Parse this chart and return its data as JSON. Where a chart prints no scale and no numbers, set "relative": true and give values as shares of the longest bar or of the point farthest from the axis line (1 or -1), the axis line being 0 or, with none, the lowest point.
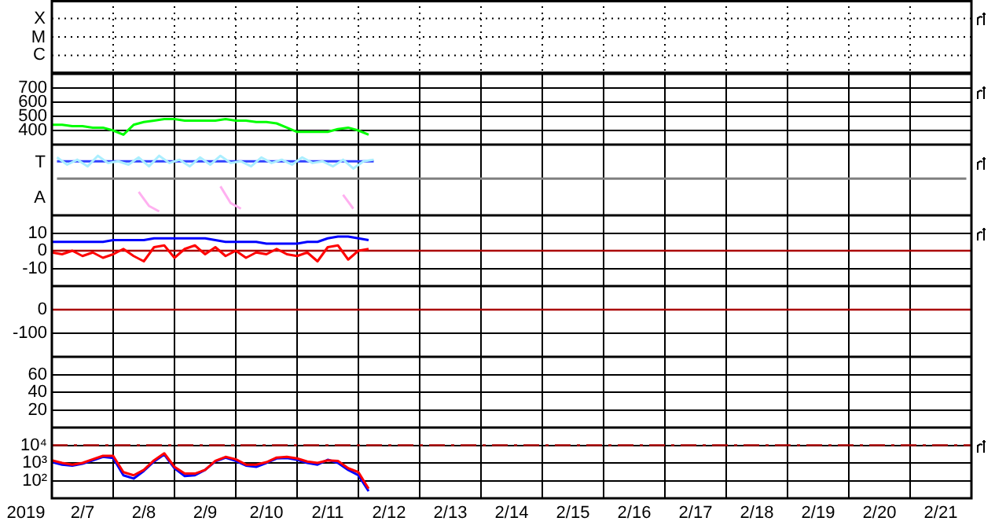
{
  "chart_data": [
    {
      "type": "other",
      "annotations": [
        "X",
        "M",
        "C"
      ]
    },
    {
      "type": "line",
      "tick_labels": "y",
      "grid": true,
      "legend": false,
      "xlim": [
        "2019-02-07T00:00",
        "2019-02-22T00:00"
      ],
      "ylim": [
        300,
        800
      ],
      "yticks": [
        400,
        500,
        600,
        700
      ],
      "x": [
        "2019-02-07T00:00",
        "2019-02-07T04:00",
        "2019-02-07T08:00",
        "2019-02-07T12:00",
        "2019-02-07T16:00",
        "2019-02-07T20:00",
        "2019-02-08T00:00",
        "2019-02-08T04:00",
        "2019-02-08T08:00",
        "2019-02-08T12:00",
        "2019-02-08T16:00",
        "2019-02-08T20:00",
        "2019-02-09T00:00",
        "2019-02-09T04:00",
        "2019-02-09T08:00",
        "2019-02-09T12:00",
        "2019-02-09T16:00",
        "2019-02-09T20:00",
        "2019-02-10T00:00",
        "2019-02-10T04:00",
        "2019-02-10T08:00",
        "2019-02-10T12:00",
        "2019-02-10T16:00",
        "2019-02-10T20:00",
        "2019-02-11T00:00",
        "2019-02-11T04:00",
        "2019-02-11T08:00",
        "2019-02-11T12:00",
        "2019-02-11T16:00",
        "2019-02-11T20:00",
        "2019-02-12T00:00",
        "2019-02-12T04:00"
      ],
      "series": [
        {
          "color": "#00ff00",
          "values": [
            440,
            440,
            430,
            430,
            420,
            420,
            400,
            370,
            440,
            460,
            470,
            480,
            480,
            470,
            470,
            470,
            470,
            480,
            470,
            470,
            460,
            460,
            450,
            420,
            390,
            390,
            390,
            390,
            410,
            420,
            400,
            370
          ]
        }
      ],
      "xticks": [
        {
          "value": "2019-02-07T00:00",
          "label": null
        },
        {
          "value": "2019-02-08T00:00",
          "label": null
        },
        {
          "value": "2019-02-09T00:00",
          "label": null
        },
        {
          "value": "2019-02-10T00:00",
          "label": null
        },
        {
          "value": "2019-02-11T00:00",
          "label": null
        },
        {
          "value": "2019-02-12T00:00",
          "label": null
        },
        {
          "value": "2019-02-13T00:00",
          "label": null
        },
        {
          "value": "2019-02-14T00:00",
          "label": null
        },
        {
          "value": "2019-02-15T00:00",
          "label": null
        },
        {
          "value": "2019-02-16T00:00",
          "label": null
        },
        {
          "value": "2019-02-17T00:00",
          "label": null
        },
        {
          "value": "2019-02-18T00:00",
          "label": null
        },
        {
          "value": "2019-02-19T00:00",
          "label": null
        },
        {
          "value": "2019-02-20T00:00",
          "label": null
        },
        {
          "value": "2019-02-21T00:00",
          "label": null
        },
        {
          "value": "2019-02-22T00:00",
          "label": null
        }
      ]
    },
    {
      "type": "line",
      "grid": "x",
      "tick_labels": false,
      "legend": false,
      "relative": true,
      "annotations": [
        "T",
        "A"
      ],
      "categories": [
        null,
        null,
        null,
        null,
        null,
        null,
        null,
        null,
        null,
        null,
        null,
        null,
        null,
        null,
        null,
        null,
        null,
        null,
        null,
        null,
        null,
        null,
        null,
        null,
        null,
        null,
        null,
        null,
        null,
        null,
        null,
        null,
        null,
        null,
        null,
        null,
        null,
        null,
        null,
        null,
        null,
        null,
        null,
        null,
        null,
        null,
        null,
        null,
        null,
        null,
        null,
        null,
        null,
        null,
        null,
        null,
        null,
        null,
        null,
        null,
        null,
        null,
        null,
        null,
        null,
        null,
        null,
        null,
        null,
        null,
        null,
        null,
        null,
        null,
        null,
        null,
        null,
        null,
        null,
        null,
        null,
        null,
        null,
        null,
        null,
        null,
        null,
        null,
        null,
        null
      ],
      "series": [
        {
          "color": "#aaeeff",
          "values": [
            0.97,
            0.84,
            0.93,
            0.81,
            1,
            0.87,
            0.9,
            0.84,
            0.97,
            0.81,
            1,
            0.87,
            0.93,
            0.81,
            0.97,
            0.84,
            1,
            0.87,
            0.9,
            0.81,
            0.97,
            0.87,
            0.93,
            0.84,
            0.97,
            0.87,
            0.9,
            0.81,
            0.93,
            0.77,
            0.9,
            0.93,
            null,
            null,
            null,
            null,
            null,
            null,
            null,
            null,
            null,
            null,
            null,
            null,
            null,
            null,
            null,
            null,
            null,
            null,
            null,
            null,
            null,
            null,
            null,
            null,
            null,
            null,
            null,
            null,
            null,
            null,
            null,
            null,
            null,
            null,
            null,
            null,
            null,
            null,
            null,
            null,
            null,
            null,
            null,
            null,
            null,
            null,
            null,
            null,
            null,
            null,
            null,
            null,
            null,
            null,
            null,
            null,
            null,
            null
          ]
        },
        {
          "color": "#ffb0f0",
          "values": [
            null,
            null,
            null,
            null,
            null,
            null,
            null,
            null,
            0.35,
            0.1,
            0,
            null,
            null,
            null,
            null,
            null,
            0.45,
            0.15,
            0.05,
            null,
            null,
            null,
            null,
            null,
            null,
            null,
            null,
            null,
            0.3,
            0.05,
            null,
            null,
            null,
            null,
            null,
            null,
            null,
            null,
            null,
            null,
            null,
            null,
            null,
            null,
            null,
            null,
            null,
            null,
            null,
            null,
            null,
            null,
            null,
            null,
            null,
            null,
            null,
            null,
            null,
            null,
            null,
            null,
            null,
            null,
            null,
            null,
            null,
            null,
            null,
            null,
            null,
            null,
            null,
            null,
            null,
            null,
            null,
            null,
            null,
            null,
            null,
            null,
            null,
            null,
            null,
            null,
            null,
            null,
            null,
            null
          ]
        },
        {
          "color": "#808080",
          "values": [
            0.59,
            0.59,
            0.59,
            0.59,
            0.59,
            0.59,
            0.59,
            0.59,
            0.59,
            0.59,
            0.59,
            0.59,
            0.59,
            0.59,
            0.59,
            0.59,
            0.59,
            0.59,
            0.59,
            0.59,
            0.59,
            0.59,
            0.59,
            0.59,
            0.59,
            0.59,
            0.59,
            0.59,
            0.59,
            0.59,
            0.59,
            0.59,
            0.59,
            0.59,
            0.59,
            0.59,
            0.59,
            0.59,
            0.59,
            0.59,
            0.59,
            0.59,
            0.59,
            0.59,
            0.59,
            0.59,
            0.59,
            0.59,
            0.59,
            0.59,
            0.59,
            0.59,
            0.59,
            0.59,
            0.59,
            0.59,
            0.59,
            0.59,
            0.59,
            0.59,
            0.59,
            0.59,
            0.59,
            0.59,
            0.59,
            0.59,
            0.59,
            0.59,
            0.59,
            0.59,
            0.59,
            0.59,
            0.59,
            0.59,
            0.59,
            0.59,
            0.59,
            0.59,
            0.59,
            0.59,
            0.59,
            0.59,
            0.59,
            0.59,
            0.59,
            0.59,
            0.59,
            0.59,
            0.59,
            0.59
          ]
        },
        {
          "color": "#3040ff",
          "values": [
            0.9,
            0.9,
            0.9,
            0.9,
            0.9,
            0.9,
            0.9,
            0.9,
            0.9,
            0.9,
            0.9,
            0.9,
            0.9,
            0.9,
            0.9,
            0.9,
            0.9,
            0.9,
            0.9,
            0.9,
            0.9,
            0.9,
            0.9,
            0.9,
            0.9,
            0.9,
            0.9,
            0.9,
            0.9,
            0.9,
            0.9,
            0.9,
            null,
            null,
            null,
            null,
            null,
            null,
            null,
            null,
            null,
            null,
            null,
            null,
            null,
            null,
            null,
            null,
            null,
            null,
            null,
            null,
            null,
            null,
            null,
            null,
            null,
            null,
            null,
            null,
            null,
            null,
            null,
            null,
            null,
            null,
            null,
            null,
            null,
            null,
            null,
            null,
            null,
            null,
            null,
            null,
            null,
            null,
            null,
            null,
            null,
            null,
            null,
            null,
            null,
            null,
            null,
            null,
            null,
            null
          ]
        }
      ]
    },
    {
      "type": "line",
      "tick_labels": "y",
      "grid": true,
      "legend": false,
      "xlim": [
        "2019-02-07T00:00",
        "2019-02-22T00:00"
      ],
      "ylim": [
        -20,
        20
      ],
      "yticks": [
        -10,
        0,
        10
      ],
      "ref_lines": [
        {
          "axis": "y",
          "value": 0,
          "color": "#aa0000",
          "line_style": "solid"
        }
      ],
      "x": [
        "2019-02-07T00:00",
        "2019-02-07T04:00",
        "2019-02-07T08:00",
        "2019-02-07T12:00",
        "2019-02-07T16:00",
        "2019-02-07T20:00",
        "2019-02-08T00:00",
        "2019-02-08T04:00",
        "2019-02-08T08:00",
        "2019-02-08T12:00",
        "2019-02-08T16:00",
        "2019-02-08T20:00",
        "2019-02-09T00:00",
        "2019-02-09T04:00",
        "2019-02-09T08:00",
        "2019-02-09T12:00",
        "2019-02-09T16:00",
        "2019-02-09T20:00",
        "2019-02-10T00:00",
        "2019-02-10T04:00",
        "2019-02-10T08:00",
        "2019-02-10T12:00",
        "2019-02-10T16:00",
        "2019-02-10T20:00",
        "2019-02-11T00:00",
        "2019-02-11T04:00",
        "2019-02-11T08:00",
        "2019-02-11T12:00",
        "2019-02-11T16:00",
        "2019-02-11T20:00",
        "2019-02-12T00:00",
        "2019-02-12T04:00"
      ],
      "series": [
        {
          "color": "#0000ff",
          "values": [
            5,
            5,
            5,
            5,
            5,
            5,
            6,
            6,
            6,
            6,
            7,
            7,
            7,
            7,
            7,
            7,
            6,
            5,
            5,
            5,
            5,
            4,
            4,
            4,
            4,
            5,
            5,
            7,
            8,
            8,
            7,
            6
          ]
        },
        {
          "color": "#ff0000",
          "values": [
            -1,
            -2,
            0,
            -3,
            -1,
            -4,
            -2,
            1,
            -3,
            -6,
            2,
            3,
            -4,
            1,
            3,
            -2,
            2,
            -3,
            0,
            -4,
            -1,
            -2,
            1,
            -2,
            -3,
            -1,
            -6,
            2,
            3,
            -5,
            0,
            1
          ]
        }
      ],
      "xticks": [
        {
          "value": "2019-02-07T00:00",
          "label": null
        },
        {
          "value": "2019-02-08T00:00",
          "label": null
        },
        {
          "value": "2019-02-09T00:00",
          "label": null
        },
        {
          "value": "2019-02-10T00:00",
          "label": null
        },
        {
          "value": "2019-02-11T00:00",
          "label": null
        },
        {
          "value": "2019-02-12T00:00",
          "label": null
        },
        {
          "value": "2019-02-13T00:00",
          "label": null
        },
        {
          "value": "2019-02-14T00:00",
          "label": null
        },
        {
          "value": "2019-02-15T00:00",
          "label": null
        },
        {
          "value": "2019-02-16T00:00",
          "label": null
        },
        {
          "value": "2019-02-17T00:00",
          "label": null
        },
        {
          "value": "2019-02-18T00:00",
          "label": null
        },
        {
          "value": "2019-02-19T00:00",
          "label": null
        },
        {
          "value": "2019-02-20T00:00",
          "label": null
        },
        {
          "value": "2019-02-21T00:00",
          "label": null
        },
        {
          "value": "2019-02-22T00:00",
          "label": null
        }
      ]
    },
    {
      "type": "line",
      "tick_labels": "y",
      "grid": true,
      "legend": false,
      "xlim": [
        "2019-02-07T00:00",
        "2019-02-22T00:00"
      ],
      "ylim": [
        -200,
        100
      ],
      "yticks": [
        -100,
        0
      ],
      "ref_lines": [
        {
          "axis": "y",
          "value": 0,
          "color": "#aa0000",
          "line_style": "solid"
        }
      ],
      "xticks": [
        {
          "value": "2019-02-07T00:00",
          "label": null
        },
        {
          "value": "2019-02-08T00:00",
          "label": null
        },
        {
          "value": "2019-02-09T00:00",
          "label": null
        },
        {
          "value": "2019-02-10T00:00",
          "label": null
        },
        {
          "value": "2019-02-11T00:00",
          "label": null
        },
        {
          "value": "2019-02-12T00:00",
          "label": null
        },
        {
          "value": "2019-02-13T00:00",
          "label": null
        },
        {
          "value": "2019-02-14T00:00",
          "label": null
        },
        {
          "value": "2019-02-15T00:00",
          "label": null
        },
        {
          "value": "2019-02-16T00:00",
          "label": null
        },
        {
          "value": "2019-02-17T00:00",
          "label": null
        },
        {
          "value": "2019-02-18T00:00",
          "label": null
        },
        {
          "value": "2019-02-19T00:00",
          "label": null
        },
        {
          "value": "2019-02-20T00:00",
          "label": null
        },
        {
          "value": "2019-02-21T00:00",
          "label": null
        },
        {
          "value": "2019-02-22T00:00",
          "label": null
        }
      ]
    },
    {
      "type": "line",
      "tick_labels": "y",
      "grid": true,
      "legend": false,
      "xlim": [
        "2019-02-07T00:00",
        "2019-02-22T00:00"
      ],
      "ylim": [
        0,
        80
      ],
      "yticks": [
        20,
        40,
        60
      ],
      "xticks": [
        {
          "value": "2019-02-07T00:00",
          "label": null
        },
        {
          "value": "2019-02-08T00:00",
          "label": null
        },
        {
          "value": "2019-02-09T00:00",
          "label": null
        },
        {
          "value": "2019-02-10T00:00",
          "label": null
        },
        {
          "value": "2019-02-11T00:00",
          "label": null
        },
        {
          "value": "2019-02-12T00:00",
          "label": null
        },
        {
          "value": "2019-02-13T00:00",
          "label": null
        },
        {
          "value": "2019-02-14T00:00",
          "label": null
        },
        {
          "value": "2019-02-15T00:00",
          "label": null
        },
        {
          "value": "2019-02-16T00:00",
          "label": null
        },
        {
          "value": "2019-02-17T00:00",
          "label": null
        },
        {
          "value": "2019-02-18T00:00",
          "label": null
        },
        {
          "value": "2019-02-19T00:00",
          "label": null
        },
        {
          "value": "2019-02-20T00:00",
          "label": null
        },
        {
          "value": "2019-02-21T00:00",
          "label": null
        },
        {
          "value": "2019-02-22T00:00",
          "label": null
        }
      ]
    },
    {
      "type": "line",
      "grid": true,
      "legend": false,
      "log": true,
      "xlabel": "2019",
      "xlim": [
        "2019-02-07T00:00",
        "2019-02-22T00:00"
      ],
      "ylim": [
        10,
        100000
      ],
      "yticks": [
        {
          "value": 100,
          "label": "10²"
        },
        {
          "value": 1000,
          "label": "10³"
        },
        {
          "value": 10000,
          "label": "10⁴"
        }
      ],
      "ref_lines": [
        {
          "axis": "y",
          "value": 10000,
          "color": "#aa0000",
          "line_style": "dashed"
        }
      ],
      "x": [
        "2019-02-07T00:00",
        "2019-02-07T04:00",
        "2019-02-07T08:00",
        "2019-02-07T12:00",
        "2019-02-07T16:00",
        "2019-02-07T20:00",
        "2019-02-08T00:00",
        "2019-02-08T04:00",
        "2019-02-08T08:00",
        "2019-02-08T12:00",
        "2019-02-08T16:00",
        "2019-02-08T20:00",
        "2019-02-09T00:00",
        "2019-02-09T04:00",
        "2019-02-09T08:00",
        "2019-02-09T12:00",
        "2019-02-09T16:00",
        "2019-02-09T20:00",
        "2019-02-10T00:00",
        "2019-02-10T04:00",
        "2019-02-10T08:00",
        "2019-02-10T12:00",
        "2019-02-10T16:00",
        "2019-02-10T20:00",
        "2019-02-11T00:00",
        "2019-02-11T04:00",
        "2019-02-11T08:00",
        "2019-02-11T12:00",
        "2019-02-11T16:00",
        "2019-02-11T20:00",
        "2019-02-12T00:00",
        "2019-02-12T04:00"
      ],
      "series": [
        {
          "color": "#ff0000",
          "values": [
            1400,
            1000,
            800,
            1000,
            1600,
            2500,
            2500,
            300,
            200,
            400,
            1400,
            3500,
            600,
            250,
            250,
            400,
            1300,
            2200,
            1600,
            800,
            800,
            1100,
            2000,
            2200,
            1800,
            1200,
            1000,
            1400,
            1300,
            500,
            300,
            35
          ]
        },
        {
          "color": "#0000ff",
          "values": [
            1100,
            800,
            700,
            900,
            1400,
            2200,
            1900,
            200,
            130,
            350,
            1200,
            3000,
            500,
            180,
            200,
            400,
            1200,
            2000,
            1300,
            700,
            600,
            1000,
            1800,
            1900,
            1500,
            1000,
            800,
            1500,
            1000,
            400,
            200,
            25
          ]
        }
      ],
      "xticks": [
        {
          "value": "2019-02-07T00:00",
          "label": null
        },
        {
          "value": "2019-02-07T12:00",
          "label": "2/7"
        },
        {
          "value": "2019-02-08T00:00",
          "label": null
        },
        {
          "value": "2019-02-08T12:00",
          "label": "2/8"
        },
        {
          "value": "2019-02-09T00:00",
          "label": null
        },
        {
          "value": "2019-02-09T12:00",
          "label": "2/9"
        },
        {
          "value": "2019-02-10T00:00",
          "label": null
        },
        {
          "value": "2019-02-10T12:00",
          "label": "2/10"
        },
        {
          "value": "2019-02-11T00:00",
          "label": null
        },
        {
          "value": "2019-02-11T12:00",
          "label": "2/11"
        },
        {
          "value": "2019-02-12T00:00",
          "label": null
        },
        {
          "value": "2019-02-12T12:00",
          "label": "2/12"
        },
        {
          "value": "2019-02-13T00:00",
          "label": null
        },
        {
          "value": "2019-02-13T12:00",
          "label": "2/13"
        },
        {
          "value": "2019-02-14T00:00",
          "label": null
        },
        {
          "value": "2019-02-14T12:00",
          "label": "2/14"
        },
        {
          "value": "2019-02-15T00:00",
          "label": null
        },
        {
          "value": "2019-02-15T12:00",
          "label": "2/15"
        },
        {
          "value": "2019-02-16T00:00",
          "label": null
        },
        {
          "value": "2019-02-16T12:00",
          "label": "2/16"
        },
        {
          "value": "2019-02-17T00:00",
          "label": null
        },
        {
          "value": "2019-02-17T12:00",
          "label": "2/17"
        },
        {
          "value": "2019-02-18T00:00",
          "label": null
        },
        {
          "value": "2019-02-18T12:00",
          "label": "2/18"
        },
        {
          "value": "2019-02-19T00:00",
          "label": null
        },
        {
          "value": "2019-02-19T12:00",
          "label": "2/19"
        },
        {
          "value": "2019-02-20T00:00",
          "label": null
        },
        {
          "value": "2019-02-20T12:00",
          "label": "2/20"
        },
        {
          "value": "2019-02-21T00:00",
          "label": null
        },
        {
          "value": "2019-02-21T12:00",
          "label": "2/21"
        },
        {
          "value": "2019-02-22T00:00",
          "label": null
        }
      ]
    }
  ]
}
